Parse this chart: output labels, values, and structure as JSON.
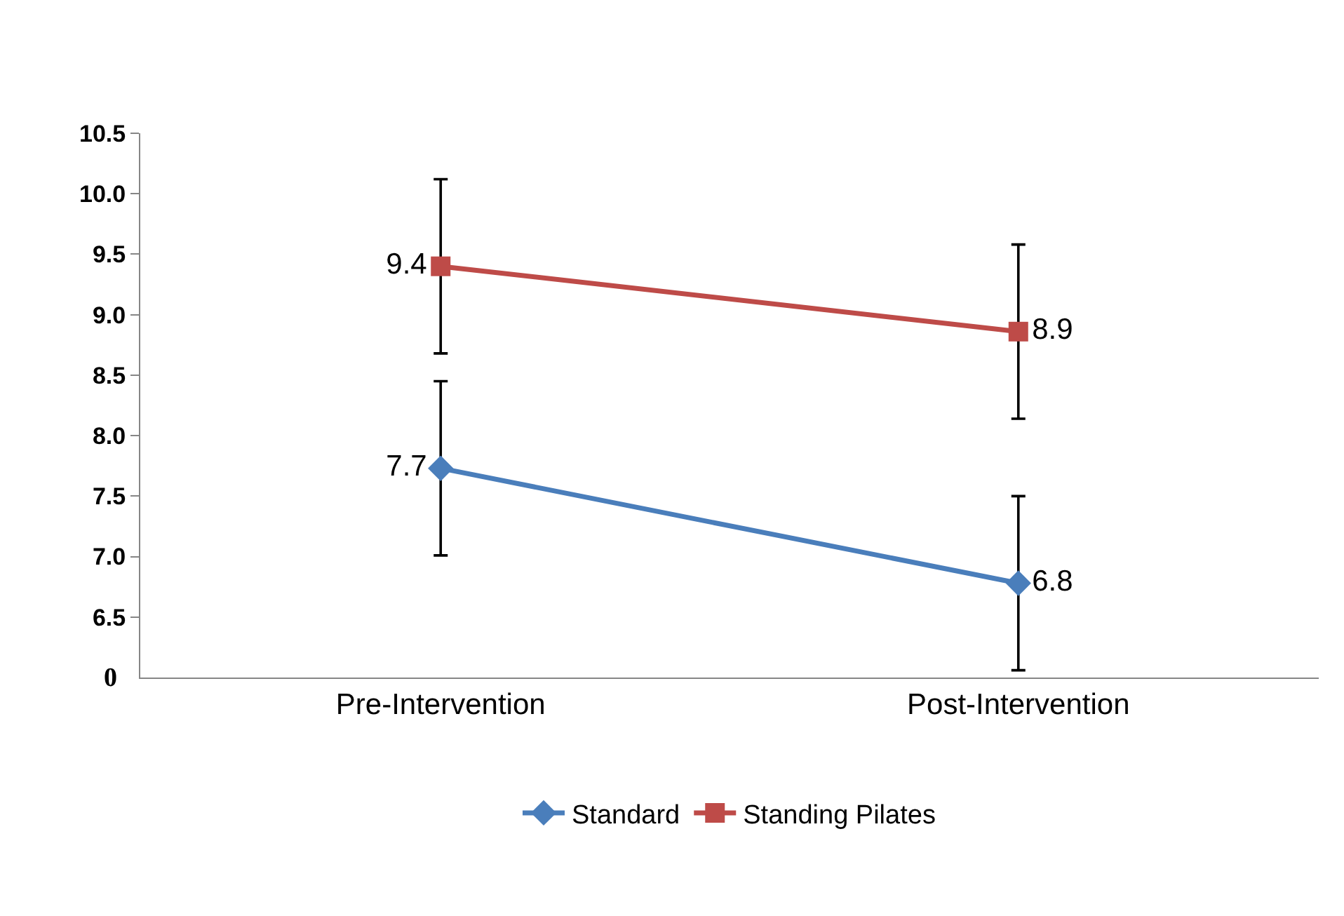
{
  "chart_data": {
    "type": "line",
    "categories": [
      "Pre-Intervention",
      "Post-Intervention"
    ],
    "series": [
      {
        "name": "Standard",
        "color": "#4a7ebb",
        "marker": "diamond",
        "values": [
          7.73,
          6.78
        ],
        "errors": [
          0.72,
          0.72
        ],
        "value_labels": [
          "7.7",
          "6.8"
        ]
      },
      {
        "name": "Standing Pilates",
        "color": "#be4b48",
        "marker": "square",
        "values": [
          9.4,
          8.86
        ],
        "errors": [
          0.72,
          0.72
        ],
        "value_labels": [
          "9.4",
          "8.9"
        ]
      }
    ],
    "ylim": [
      6.0,
      10.5
    ],
    "annotations": [
      "0"
    ],
    "yticks": [
      6.5,
      {
        "value": 7,
        "label": "7.0"
      },
      7.5,
      {
        "value": 8,
        "label": "8.0"
      },
      8.5,
      {
        "value": 9,
        "label": "9.0"
      },
      9.5,
      {
        "value": 10,
        "label": "10.0"
      },
      10.5
    ],
    "legend": "bottom",
    "line_style": "solid"
  }
}
